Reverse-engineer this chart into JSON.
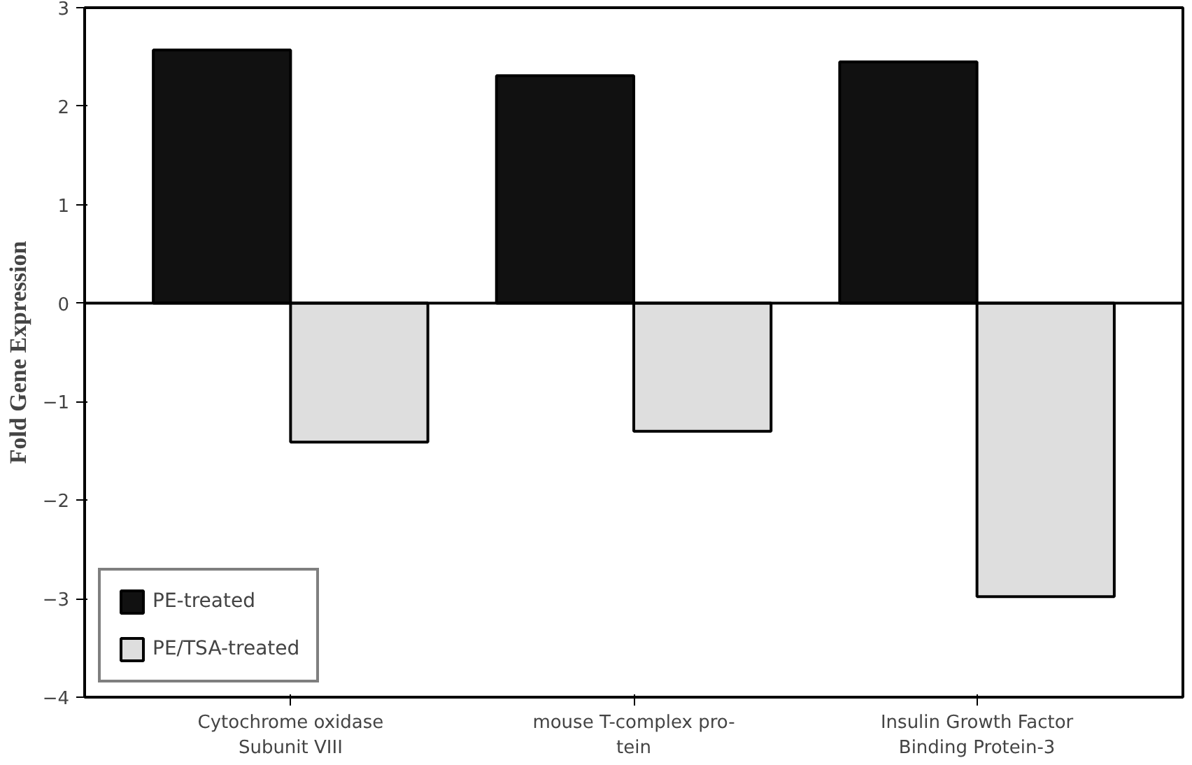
{
  "chart_data": {
    "type": "bar",
    "ylabel": "Fold Gene Expression",
    "categories": [
      "Cytochrome oxidase\nSubunit VIII",
      "mouse T-complex pro-\ntein",
      "Insulin Growth Factor\nBinding Protein-3"
    ],
    "series": [
      {
        "name": "PE-treated",
        "color": "#111111",
        "values": [
          2.57,
          2.31,
          2.45
        ]
      },
      {
        "name": "PE/TSA-treated",
        "color": "#dedede",
        "values": [
          -1.41,
          -1.3,
          -2.98
        ]
      }
    ],
    "ylim": [
      -4,
      3
    ],
    "yticks": [
      -4,
      -3,
      -2,
      -1,
      0,
      1,
      2,
      3
    ],
    "grid": false,
    "ref_lines": [
      {
        "axis": "y",
        "value": 0,
        "color": "#000000"
      }
    ],
    "legend": "bottom left"
  }
}
